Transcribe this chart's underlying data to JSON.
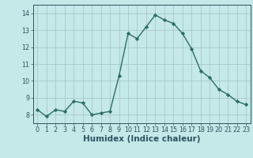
{
  "x": [
    0,
    1,
    2,
    3,
    4,
    5,
    6,
    7,
    8,
    9,
    10,
    11,
    12,
    13,
    14,
    15,
    16,
    17,
    18,
    19,
    20,
    21,
    22,
    23
  ],
  "y": [
    8.3,
    7.9,
    8.3,
    8.2,
    8.8,
    8.7,
    8.0,
    8.1,
    8.2,
    10.3,
    12.8,
    12.5,
    13.2,
    13.9,
    13.6,
    13.4,
    12.8,
    11.9,
    10.6,
    10.2,
    9.5,
    9.2,
    8.8,
    8.6
  ],
  "line_color": "#2d6e63",
  "marker": "D",
  "marker_size": 2.2,
  "bg_color": "#c5e8e8",
  "grid_color": "#a8c8c8",
  "xlabel": "Humidex (Indice chaleur)",
  "xlabel_color": "#2d5560",
  "ylim": [
    7.5,
    14.5
  ],
  "xlim": [
    -0.5,
    23.5
  ],
  "yticks": [
    8,
    9,
    10,
    11,
    12,
    13,
    14
  ],
  "xticks": [
    0,
    1,
    2,
    3,
    4,
    5,
    6,
    7,
    8,
    9,
    10,
    11,
    12,
    13,
    14,
    15,
    16,
    17,
    18,
    19,
    20,
    21,
    22,
    23
  ],
  "tick_color": "#2d5560",
  "tick_fontsize": 5.8,
  "xlabel_fontsize": 7.5,
  "linewidth": 1.0
}
